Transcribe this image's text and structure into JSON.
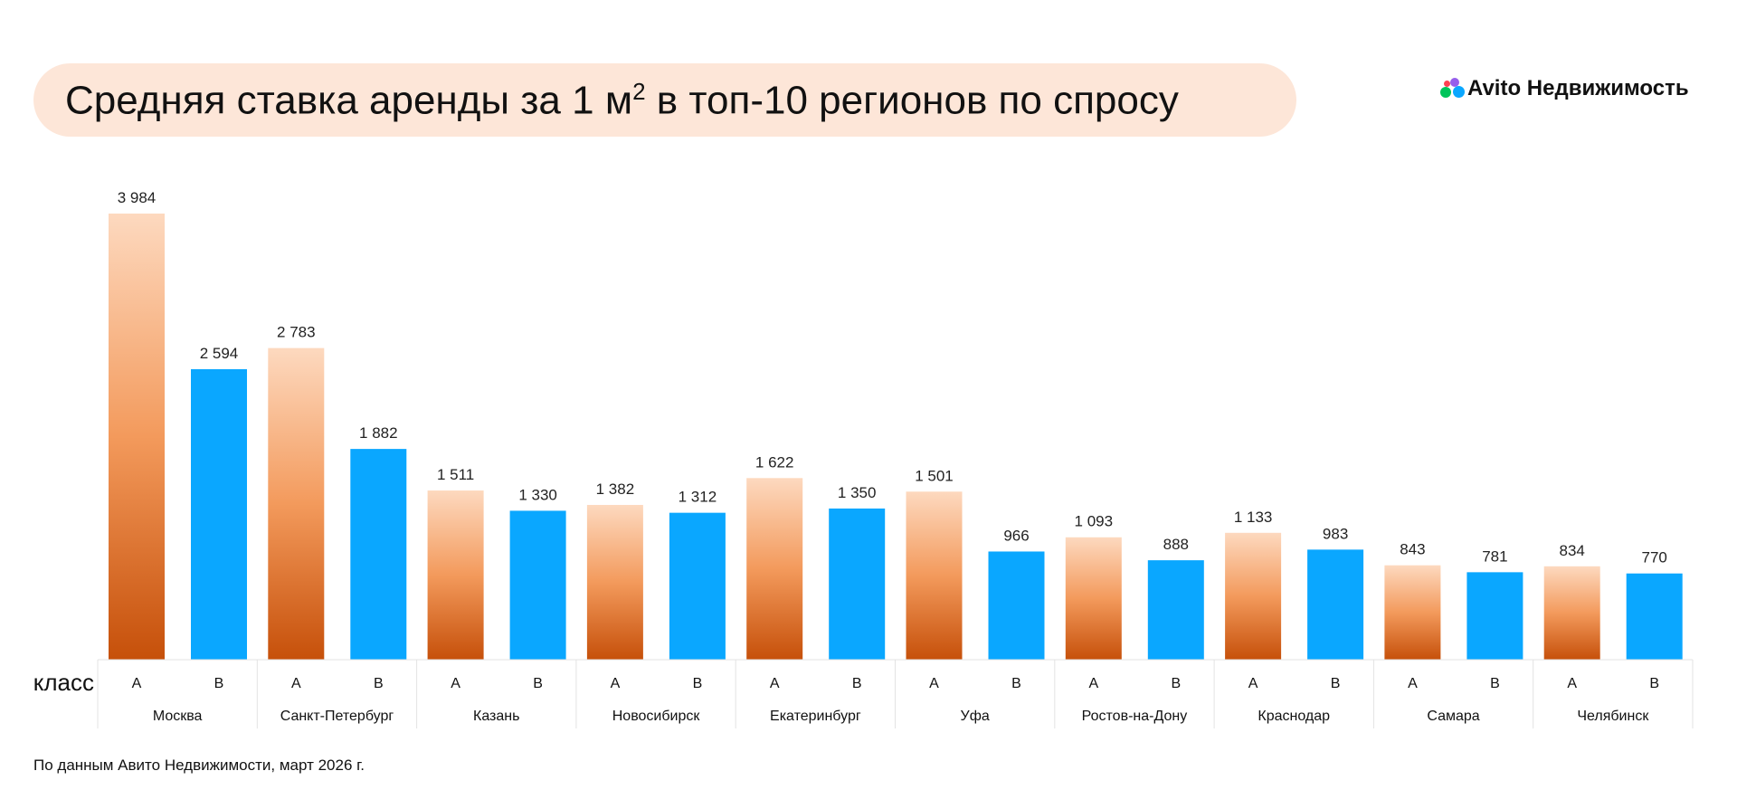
{
  "header": {
    "title": "Средняя ставка аренды за 1 м",
    "title_sup": "2",
    "title_end": " в топ-10 регионов по спросу",
    "logo": "Avito Недвижимость"
  },
  "footer": "По данным Авито Недвижимости, март 2026 г.",
  "colors": {
    "class_a_top": "#fdd9bf",
    "class_a_bottom": "#c6500a",
    "class_b": "#0aa7ff",
    "title_bg": "#fde6d8"
  },
  "chart_data": {
    "type": "bar",
    "title": "Средняя ставка аренды за 1 м² в топ-10 регионов по спросу",
    "axis_label": "класс",
    "series_names": [
      "A",
      "B"
    ],
    "categories": [
      "Москва",
      "Санкт-Петербург",
      "Казань",
      "Новосибирск",
      "Екатеринбург",
      "Уфа",
      "Ростов-на-Дону",
      "Краснодар",
      "Самара",
      "Челябинск"
    ],
    "series": [
      {
        "name": "A",
        "values": [
          3984,
          2783,
          1511,
          1382,
          1622,
          1501,
          1093,
          1133,
          843,
          834
        ]
      },
      {
        "name": "B",
        "values": [
          2594,
          1882,
          1330,
          1312,
          1350,
          966,
          888,
          983,
          781,
          770
        ]
      }
    ],
    "value_labels": {
      "A": [
        "3 984",
        "2 783",
        "1 511",
        "1 382",
        "1 622",
        "1 501",
        "1 093",
        "1 133",
        "843",
        "834"
      ],
      "B": [
        "2 594",
        "1 882",
        "1 330",
        "1 312",
        "1 350",
        "966",
        "888",
        "983",
        "781",
        "770"
      ]
    },
    "ylim": [
      0,
      3984
    ]
  }
}
